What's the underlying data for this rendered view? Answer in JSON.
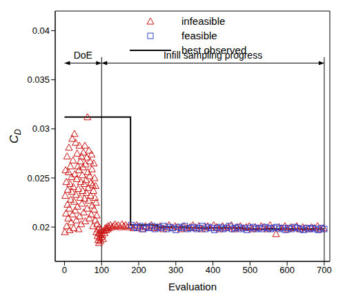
{
  "chart_data": {
    "type": "scatter",
    "x_label": "Evaluation",
    "y_label": "CD",
    "xlim": [
      -25,
      715
    ],
    "xticks": [
      0,
      100,
      200,
      300,
      400,
      500,
      600,
      700
    ],
    "ylim": [
      0.0165,
      0.042
    ],
    "yticks": [
      0.02,
      0.025,
      0.03,
      0.035,
      0.04
    ],
    "grid": false,
    "legend": "top",
    "annotations": [
      {
        "text": "DoE",
        "x": [
          0,
          100
        ],
        "y": 0.0367
      },
      {
        "text": "Infill sampling progress",
        "x": [
          100,
          700
        ],
        "y": 0.0367
      }
    ],
    "vlines": [
      {
        "x": 100,
        "y": [
          0.0165,
          0.0373
        ]
      },
      {
        "x": 700,
        "y": [
          0.0165,
          0.0373
        ]
      }
    ],
    "series": [
      {
        "name": "infeasible",
        "type": "scatter",
        "marker": "triangle",
        "color": "#cc1111",
        "x": [
          1,
          2,
          3,
          4,
          5,
          6,
          7,
          8,
          9,
          10,
          11,
          12,
          13,
          14,
          15,
          16,
          17,
          18,
          19,
          20,
          21,
          22,
          23,
          24,
          25,
          26,
          27,
          28,
          29,
          30,
          31,
          32,
          33,
          34,
          35,
          36,
          37,
          38,
          39,
          40,
          41,
          42,
          43,
          44,
          45,
          46,
          47,
          48,
          49,
          50,
          51,
          52,
          53,
          54,
          55,
          56,
          57,
          58,
          59,
          60,
          61,
          62,
          63,
          64,
          65,
          66,
          67,
          68,
          69,
          70,
          71,
          72,
          73,
          74,
          75,
          76,
          77,
          78,
          79,
          80,
          81,
          82,
          83,
          84,
          85,
          86,
          87,
          88,
          89,
          90,
          91,
          92,
          93,
          94,
          95,
          96,
          97,
          98,
          99,
          100,
          102,
          104,
          106,
          108,
          110,
          112,
          114,
          116,
          118,
          120,
          124,
          128,
          132,
          136,
          140,
          145,
          150,
          155,
          160,
          165,
          170,
          178,
          186,
          194,
          202,
          210,
          218,
          226,
          234,
          242,
          250,
          258,
          266,
          274,
          282,
          290,
          298,
          306,
          314,
          322,
          330,
          338,
          346,
          354,
          362,
          370,
          378,
          386,
          394,
          402,
          410,
          418,
          426,
          434,
          442,
          450,
          458,
          466,
          474,
          482,
          490,
          498,
          506,
          514,
          522,
          530,
          538,
          546,
          554,
          562,
          570,
          578,
          586,
          594,
          602,
          610,
          618,
          626,
          634,
          642,
          650,
          658,
          666,
          674,
          682,
          690,
          698
        ],
        "values": [
          0.0195,
          0.0232,
          0.0258,
          0.0214,
          0.0246,
          0.0201,
          0.0272,
          0.0223,
          0.0238,
          0.0209,
          0.0256,
          0.0281,
          0.0219,
          0.0197,
          0.0244,
          0.0262,
          0.0228,
          0.0205,
          0.0251,
          0.0236,
          0.029,
          0.0213,
          0.0268,
          0.0241,
          0.0199,
          0.0226,
          0.0295,
          0.0254,
          0.0217,
          0.0286,
          0.0233,
          0.0207,
          0.0249,
          0.0275,
          0.0221,
          0.0262,
          0.0239,
          0.0198,
          0.0258,
          0.0283,
          0.0211,
          0.023,
          0.0267,
          0.0246,
          0.0203,
          0.0272,
          0.0224,
          0.0253,
          0.0237,
          0.0261,
          0.0276,
          0.0215,
          0.0244,
          0.0229,
          0.0283,
          0.0206,
          0.0264,
          0.0248,
          0.0235,
          0.0271,
          0.0219,
          0.0312,
          0.0256,
          0.024,
          0.0227,
          0.0278,
          0.0209,
          0.0252,
          0.0267,
          0.0232,
          0.0245,
          0.0213,
          0.0274,
          0.0259,
          0.0222,
          0.0243,
          0.0201,
          0.0237,
          0.0265,
          0.0218,
          0.025,
          0.023,
          0.0207,
          0.0242,
          0.0225,
          0.0195,
          0.0212,
          0.0203,
          0.0191,
          0.0198,
          0.0187,
          0.0194,
          0.0184,
          0.02,
          0.0189,
          0.0193,
          0.0186,
          0.0197,
          0.019,
          0.0196,
          0.0192,
          0.0188,
          0.0196,
          0.0194,
          0.0199,
          0.0197,
          0.02,
          0.0198,
          0.0201,
          0.0199,
          0.0202,
          0.02,
          0.0201,
          0.0203,
          0.0201,
          0.0202,
          0.02,
          0.0203,
          0.0201,
          0.0202,
          0.02,
          0.0201,
          0.0199,
          0.0202,
          0.02,
          0.0198,
          0.0201,
          0.02,
          0.0202,
          0.0199,
          0.02,
          0.0201,
          0.0198,
          0.02,
          0.0202,
          0.0199,
          0.0201,
          0.02,
          0.0198,
          0.0201,
          0.0199,
          0.02,
          0.0202,
          0.0199,
          0.0201,
          0.0198,
          0.02,
          0.0201,
          0.0199,
          0.0202,
          0.02,
          0.0198,
          0.0201,
          0.0199,
          0.02,
          0.0202,
          0.0198,
          0.02,
          0.0201,
          0.0199,
          0.02,
          0.0201,
          0.0198,
          0.02,
          0.0199,
          0.0201,
          0.02,
          0.0198,
          0.0202,
          0.0199,
          0.0193,
          0.02,
          0.0199,
          0.0201,
          0.0198,
          0.02,
          0.0199,
          0.0201,
          0.0198,
          0.02,
          0.0199,
          0.0198,
          0.02,
          0.0199,
          0.0201,
          0.0198,
          0.0199
        ]
      },
      {
        "name": "feasible",
        "type": "scatter",
        "marker": "square",
        "color": "#3344cc",
        "x": [
          180,
          188,
          196,
          204,
          212,
          220,
          228,
          236,
          244,
          252,
          260,
          268,
          276,
          284,
          292,
          300,
          308,
          316,
          324,
          332,
          340,
          348,
          356,
          364,
          372,
          380,
          388,
          396,
          404,
          412,
          420,
          428,
          436,
          444,
          452,
          460,
          468,
          476,
          484,
          492,
          500,
          508,
          516,
          524,
          532,
          540,
          548,
          556,
          564,
          572,
          580,
          588,
          596,
          604,
          612,
          620,
          628,
          636,
          644,
          652,
          660,
          668,
          676,
          684,
          692,
          700
        ],
        "values": [
          0.0202,
          0.02,
          0.0199,
          0.0201,
          0.0198,
          0.02,
          0.0199,
          0.0201,
          0.0198,
          0.02,
          0.0199,
          0.0201,
          0.0198,
          0.02,
          0.0199,
          0.0197,
          0.02,
          0.0199,
          0.0201,
          0.0198,
          0.0199,
          0.02,
          0.0198,
          0.0199,
          0.0201,
          0.0198,
          0.02,
          0.0199,
          0.0197,
          0.0199,
          0.02,
          0.0198,
          0.0199,
          0.0201,
          0.0198,
          0.0199,
          0.02,
          0.0198,
          0.0199,
          0.0197,
          0.0199,
          0.02,
          0.0198,
          0.0199,
          0.0198,
          0.02,
          0.0199,
          0.0198,
          0.0199,
          0.02,
          0.0198,
          0.0199,
          0.0197,
          0.0199,
          0.0198,
          0.02,
          0.0199,
          0.0198,
          0.0197,
          0.0199,
          0.0198,
          0.0199,
          0.0198,
          0.0197,
          0.0199,
          0.0198
        ]
      },
      {
        "name": "best observed",
        "type": "step",
        "line_style": "solid",
        "color": "#000000",
        "x": [
          0,
          178,
          250,
          330,
          480,
          700
        ],
        "values": [
          0.0312,
          0.0202,
          0.02,
          0.0199,
          0.0198,
          0.0198
        ]
      }
    ]
  }
}
